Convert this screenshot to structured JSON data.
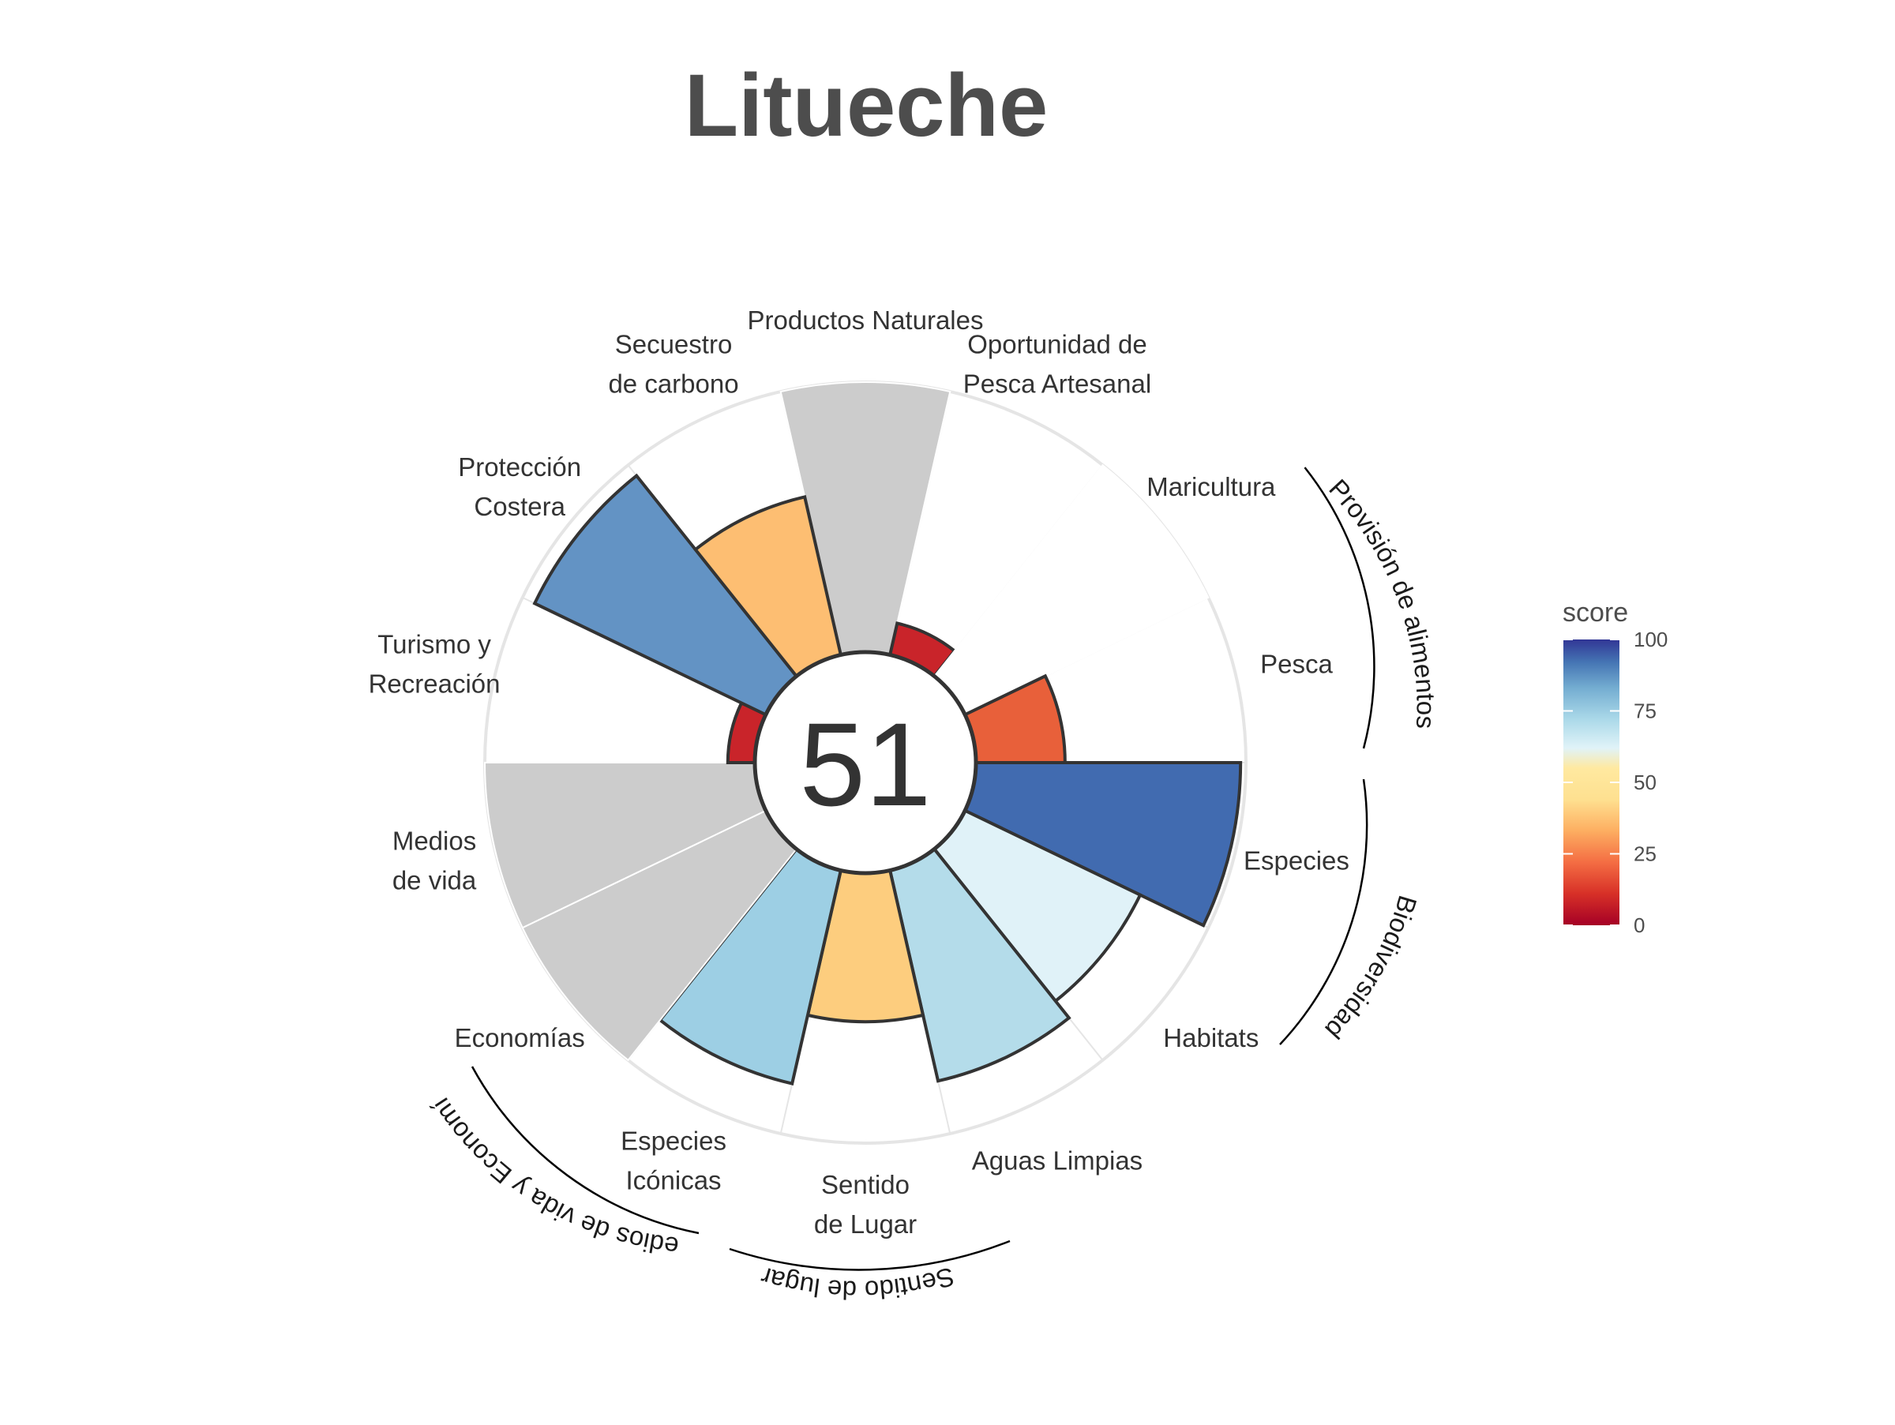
{
  "title": "Litueche",
  "chart_data": {
    "type": "bar",
    "coord": "polar",
    "center_score": "51",
    "ylim": [
      0,
      100
    ],
    "categories": [
      "Productos Naturales",
      "Oportunidad de Pesca Artesanal",
      "Maricultura",
      "Pesca",
      "Especies",
      "Habitats",
      "Aguas Limpias",
      "Sentido de Lugar",
      "Especies Icónicas",
      "Economías",
      "Medios de vida",
      "Turismo y Recreación",
      "Protección Costera",
      "Secuestro de carbono"
    ],
    "label_lines": [
      [
        "Productos Naturales"
      ],
      [
        "Oportunidad de",
        "Pesca Artesanal"
      ],
      [
        "Maricultura"
      ],
      [
        "Pesca"
      ],
      [
        "Especies"
      ],
      [
        "Habitats"
      ],
      [
        "Aguas Limpias"
      ],
      [
        "Sentido",
        "de Lugar"
      ],
      [
        "Especies",
        "Icónicas"
      ],
      [
        "Economías"
      ],
      [
        "Medios",
        "de vida"
      ],
      [
        "Turismo y",
        "Recreación"
      ],
      [
        "Protección",
        "Costera"
      ],
      [
        "Secuestro",
        "de carbono"
      ]
    ],
    "values": [
      null,
      12,
      null,
      33,
      98,
      72,
      80,
      55,
      81,
      null,
      null,
      10,
      95,
      60
    ],
    "fill_colors": [
      "#cccccc",
      "#c9242a",
      "#ffffff",
      "#e8603a",
      "#416bb0",
      "#e0f2f8",
      "#b4dcea",
      "#fdcd7e",
      "#9dcfe4",
      "#cccccc",
      "#cccccc",
      "#c9242a",
      "#6393c4",
      "#fdbe72"
    ],
    "groups": [
      "Provisión de alimentos",
      "Biodiversidad",
      "Sentido de lugar",
      "Medios de vida y Economías"
    ],
    "legend": {
      "title": "score",
      "ticks": [
        "0",
        "25",
        "50",
        "75",
        "100"
      ],
      "colors": [
        "#a50026",
        "#d73027",
        "#f46d43",
        "#fdae61",
        "#fee090",
        "#e0f3f8",
        "#abd9e9",
        "#74add1",
        "#4575b4",
        "#313695"
      ]
    }
  }
}
